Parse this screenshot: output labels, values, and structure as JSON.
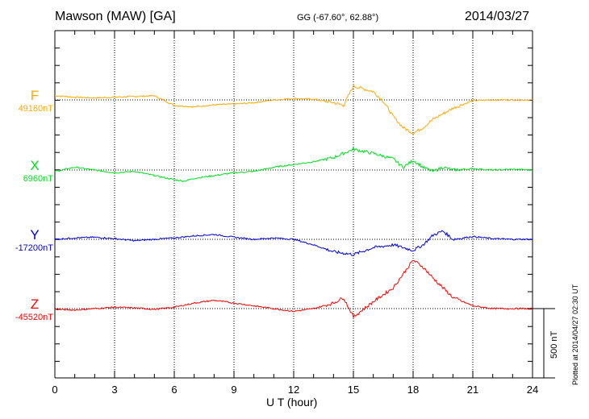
{
  "header": {
    "station": "Mawson (MAW)  [GA]",
    "coords": "GG (-67.60°,  62.88°)",
    "date": "2014/03/27"
  },
  "footer": "Plotted at 2014/04/27 02:30 UT",
  "chart_data": {
    "type": "line",
    "xlabel": "U T (hour)",
    "xlim": [
      0,
      24
    ],
    "xticks": [
      "0",
      "3",
      "6",
      "9",
      "12",
      "15",
      "18",
      "21",
      "24"
    ],
    "scale_bar": {
      "label": "500 nT",
      "value_nT": 500
    },
    "series": [
      {
        "name": "F",
        "baseline": "49160nT",
        "color": "#ffaa00",
        "x": [
          0,
          1,
          2,
          3,
          4,
          5,
          6,
          7,
          8,
          9,
          10,
          11,
          12,
          13,
          14,
          14.5,
          15,
          16,
          16.5,
          17,
          17.5,
          18,
          18.5,
          19,
          19.5,
          20,
          21,
          22,
          23,
          24
        ],
        "y": [
          30,
          20,
          15,
          20,
          25,
          30,
          -40,
          -50,
          -35,
          -30,
          -20,
          0,
          10,
          5,
          -20,
          -40,
          100,
          60,
          -10,
          -120,
          -200,
          -240,
          -200,
          -140,
          -100,
          -60,
          -5,
          0,
          0,
          0
        ]
      },
      {
        "name": "X",
        "baseline": "6960nT",
        "color": "#00e020",
        "x": [
          0,
          1,
          2,
          3,
          4,
          5,
          6,
          6.5,
          7,
          8,
          9,
          10,
          11,
          12,
          13,
          14,
          15,
          16,
          17,
          17.5,
          18,
          18.5,
          19,
          19.5,
          20,
          21,
          22,
          23,
          24
        ],
        "y": [
          -10,
          20,
          0,
          -20,
          -10,
          -40,
          -70,
          -80,
          -60,
          -40,
          -20,
          -10,
          20,
          40,
          60,
          90,
          150,
          120,
          80,
          20,
          70,
          20,
          -10,
          20,
          0,
          10,
          0,
          5,
          0
        ]
      },
      {
        "name": "Y",
        "baseline": "-17200nT",
        "color": "#0000e0",
        "x": [
          0,
          1,
          2,
          3,
          4,
          5,
          6,
          7,
          8,
          9,
          10,
          11,
          12,
          13,
          14,
          15,
          16,
          17,
          18,
          18.5,
          19,
          19.5,
          20,
          21,
          22,
          23,
          24
        ],
        "y": [
          0,
          10,
          15,
          5,
          -10,
          0,
          10,
          25,
          35,
          15,
          0,
          10,
          0,
          -40,
          -90,
          -110,
          -60,
          -40,
          -80,
          -40,
          30,
          60,
          0,
          20,
          5,
          0,
          0
        ]
      },
      {
        "name": "Z",
        "baseline": "-45520nT",
        "color": "#ff0000",
        "x": [
          0,
          1,
          2,
          3,
          4,
          5,
          6,
          7,
          8,
          9,
          10,
          11,
          12,
          13,
          14,
          14.5,
          15,
          16,
          17,
          17.5,
          18,
          18.5,
          19,
          19.5,
          20,
          21,
          22,
          23,
          24
        ],
        "y": [
          -5,
          -10,
          0,
          10,
          5,
          -5,
          10,
          40,
          60,
          40,
          20,
          0,
          -20,
          0,
          40,
          80,
          -60,
          50,
          150,
          250,
          350,
          300,
          220,
          150,
          80,
          20,
          0,
          0,
          0
        ]
      }
    ]
  }
}
